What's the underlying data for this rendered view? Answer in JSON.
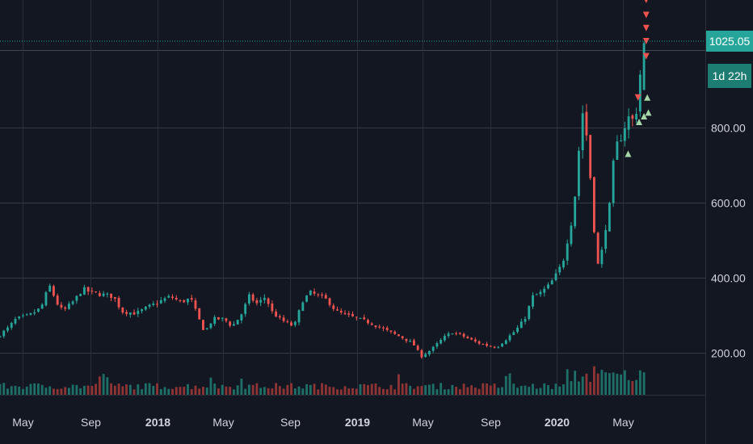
{
  "chart_data": {
    "type": "candlestick",
    "title": "",
    "xlabel": "",
    "ylabel": "",
    "ylim": [
      0,
      1150
    ],
    "y_axis_position": "right",
    "grid": true,
    "y_ticks": [
      "200.00",
      "400.00",
      "600.00",
      "800.00"
    ],
    "x_ticks": [
      {
        "label": "May",
        "date": "2017-05-01",
        "bold": false
      },
      {
        "label": "Sep",
        "date": "2017-09-01",
        "bold": false
      },
      {
        "label": "2018",
        "date": "2018-01-01",
        "bold": true
      },
      {
        "label": "May",
        "date": "2018-05-01",
        "bold": false
      },
      {
        "label": "Sep",
        "date": "2018-09-01",
        "bold": false
      },
      {
        "label": "2019",
        "date": "2019-01-01",
        "bold": true
      },
      {
        "label": "May",
        "date": "2019-05-01",
        "bold": false
      },
      {
        "label": "Sep",
        "date": "2019-09-01",
        "bold": false
      },
      {
        "label": "2020",
        "date": "2020-01-01",
        "bold": true
      },
      {
        "label": "May",
        "date": "2020-05-01",
        "bold": false
      }
    ],
    "x_range": [
      "2017-03-20",
      "2020-09-28"
    ],
    "last_price": "1025.05",
    "last_price_value": 1025.05,
    "countdown": "1d 22h",
    "series": [
      {
        "name": "",
        "price_anchors": [
          [
            "2017-03-20",
            240
          ],
          [
            "2017-04-10",
            265
          ],
          [
            "2017-04-25",
            290
          ],
          [
            "2017-05-20",
            300
          ],
          [
            "2017-06-10",
            320
          ],
          [
            "2017-06-25",
            380
          ],
          [
            "2017-07-10",
            330
          ],
          [
            "2017-07-20",
            310
          ],
          [
            "2017-08-10",
            340
          ],
          [
            "2017-08-25",
            370
          ],
          [
            "2017-09-10",
            360
          ],
          [
            "2017-10-01",
            355
          ],
          [
            "2017-10-20",
            350
          ],
          [
            "2017-11-05",
            310
          ],
          [
            "2017-12-01",
            305
          ],
          [
            "2017-12-20",
            320
          ],
          [
            "2018-01-10",
            335
          ],
          [
            "2018-02-01",
            350
          ],
          [
            "2018-02-20",
            335
          ],
          [
            "2018-03-10",
            345
          ],
          [
            "2018-03-25",
            290
          ],
          [
            "2018-04-05",
            255
          ],
          [
            "2018-04-20",
            290
          ],
          [
            "2018-05-10",
            290
          ],
          [
            "2018-05-25",
            270
          ],
          [
            "2018-06-10",
            300
          ],
          [
            "2018-06-25",
            350
          ],
          [
            "2018-07-10",
            330
          ],
          [
            "2018-07-25",
            350
          ],
          [
            "2018-08-05",
            310
          ],
          [
            "2018-08-20",
            290
          ],
          [
            "2018-09-01",
            280
          ],
          [
            "2018-09-15",
            270
          ],
          [
            "2018-10-01",
            340
          ],
          [
            "2018-10-15",
            360
          ],
          [
            "2018-11-01",
            350
          ],
          [
            "2018-11-15",
            340
          ],
          [
            "2018-12-01",
            310
          ],
          [
            "2018-12-20",
            300
          ],
          [
            "2019-01-10",
            290
          ],
          [
            "2019-02-01",
            280
          ],
          [
            "2019-03-01",
            260
          ],
          [
            "2019-04-01",
            240
          ],
          [
            "2019-04-20",
            225
          ],
          [
            "2019-05-05",
            190
          ],
          [
            "2019-05-25",
            210
          ],
          [
            "2019-06-15",
            240
          ],
          [
            "2019-07-01",
            255
          ],
          [
            "2019-07-20",
            245
          ],
          [
            "2019-08-10",
            230
          ],
          [
            "2019-09-01",
            220
          ],
          [
            "2019-09-20",
            215
          ],
          [
            "2019-10-10",
            240
          ],
          [
            "2019-10-25",
            260
          ],
          [
            "2019-11-10",
            290
          ],
          [
            "2019-11-25",
            350
          ],
          [
            "2019-12-10",
            360
          ],
          [
            "2019-12-25",
            380
          ],
          [
            "2020-01-10",
            415
          ],
          [
            "2020-01-20",
            450
          ],
          [
            "2020-01-30",
            520
          ],
          [
            "2020-02-05",
            560
          ],
          [
            "2020-02-10",
            620
          ],
          [
            "2020-02-15",
            700
          ],
          [
            "2020-02-20",
            800
          ],
          [
            "2020-02-25",
            850
          ],
          [
            "2020-03-02",
            780
          ],
          [
            "2020-03-06",
            720
          ],
          [
            "2020-03-10",
            650
          ],
          [
            "2020-03-14",
            580
          ],
          [
            "2020-03-18",
            480
          ],
          [
            "2020-03-21",
            420
          ],
          [
            "2020-03-25",
            450
          ],
          [
            "2020-03-30",
            470
          ],
          [
            "2020-04-05",
            530
          ],
          [
            "2020-04-10",
            560
          ],
          [
            "2020-04-15",
            610
          ],
          [
            "2020-04-20",
            700
          ],
          [
            "2020-04-25",
            750
          ],
          [
            "2020-04-30",
            760
          ],
          [
            "2020-05-05",
            780
          ],
          [
            "2020-05-10",
            800
          ],
          [
            "2020-05-15",
            820
          ],
          [
            "2020-05-20",
            830
          ],
          [
            "2020-05-25",
            820
          ],
          [
            "2020-05-30",
            830
          ],
          [
            "2020-06-05",
            880
          ],
          [
            "2020-06-12",
            1025.05
          ]
        ]
      }
    ],
    "volume_ylim": [
      0,
      210
    ]
  }
}
